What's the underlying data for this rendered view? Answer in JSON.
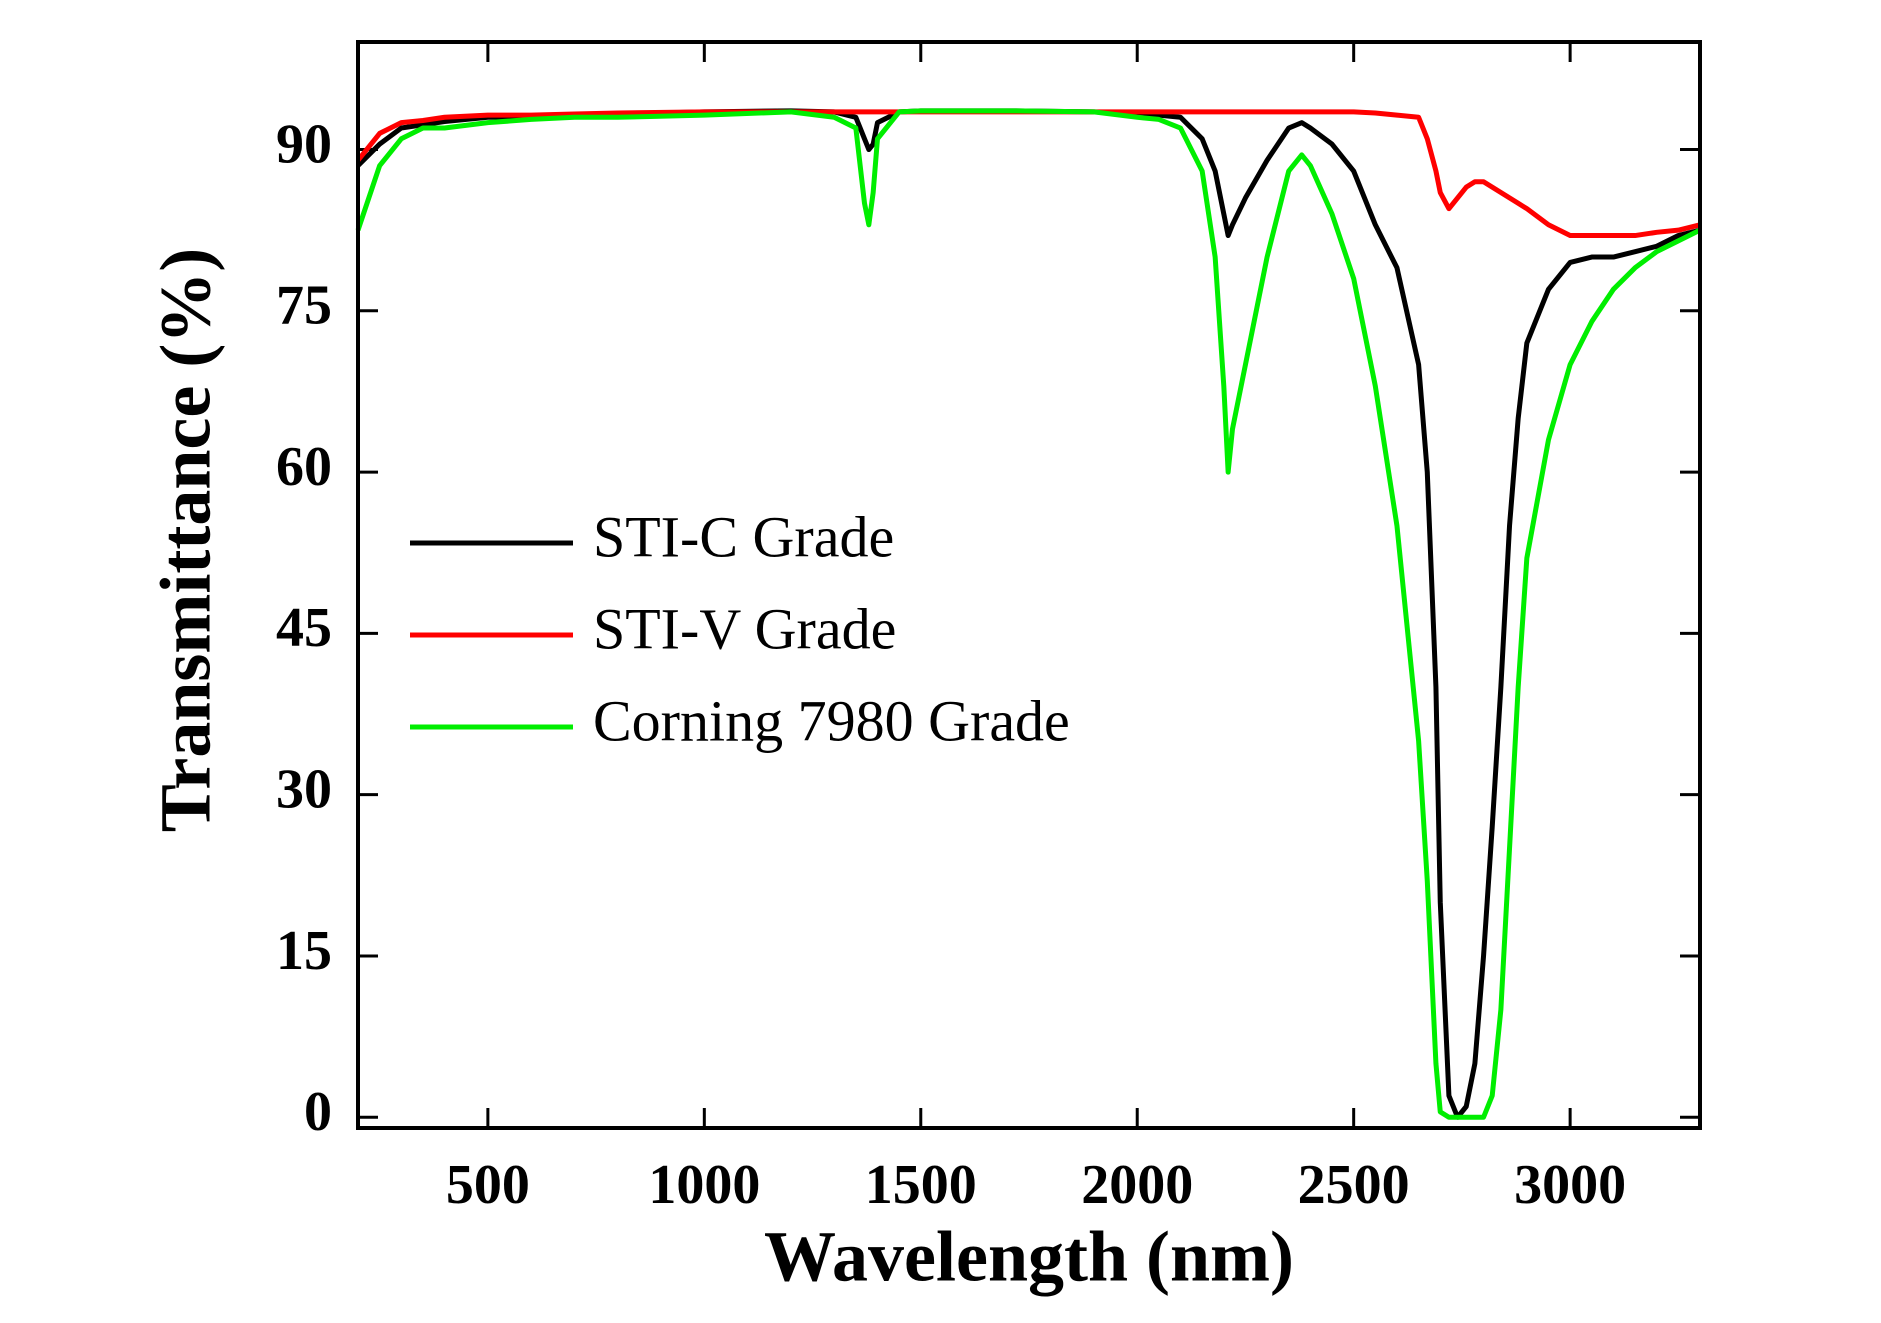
{
  "chart_data": {
    "type": "line",
    "x_label": "Wavelength (nm)",
    "y_label": "Transmittance (%)",
    "x": [
      200,
      250,
      300,
      350,
      400,
      500,
      600,
      700,
      800,
      1000,
      1200,
      1300,
      1350,
      1370,
      1380,
      1390,
      1400,
      1450,
      1500,
      1700,
      1900,
      2000,
      2050,
      2100,
      2150,
      2180,
      2200,
      2210,
      2220,
      2250,
      2300,
      2350,
      2380,
      2400,
      2450,
      2500,
      2550,
      2600,
      2650,
      2670,
      2690,
      2700,
      2720,
      2740,
      2760,
      2780,
      2800,
      2820,
      2840,
      2860,
      2880,
      2900,
      2950,
      3000,
      3050,
      3100,
      3150,
      3200,
      3250,
      3300
    ],
    "series": [
      {
        "name": "STI-C Grade",
        "color": "#000000",
        "values": [
          88.5,
          90.5,
          92,
          92.3,
          92.6,
          93,
          93,
          93.2,
          93.3,
          93.5,
          93.6,
          93.5,
          93,
          91,
          90,
          90.5,
          92.5,
          93.5,
          93.6,
          93.6,
          93.5,
          93.3,
          93.2,
          93,
          91,
          88,
          84,
          82,
          83,
          85.5,
          89,
          92,
          92.5,
          92,
          90.5,
          88,
          83,
          79,
          70,
          60,
          40,
          20,
          2,
          0,
          1,
          5,
          15,
          27,
          40,
          55,
          65,
          72,
          77,
          79.5,
          80,
          80,
          80.5,
          81,
          82,
          82.5
        ]
      },
      {
        "name": "STI-V Grade",
        "color": "#ff0000",
        "values": [
          89,
          91.5,
          92.5,
          92.7,
          93,
          93.2,
          93.2,
          93.3,
          93.4,
          93.5,
          93.5,
          93.5,
          93.5,
          93.5,
          93.5,
          93.5,
          93.5,
          93.5,
          93.5,
          93.5,
          93.5,
          93.5,
          93.5,
          93.5,
          93.5,
          93.5,
          93.5,
          93.5,
          93.5,
          93.5,
          93.5,
          93.5,
          93.5,
          93.5,
          93.5,
          93.5,
          93.4,
          93.2,
          93,
          91,
          88,
          86,
          84.5,
          85.5,
          86.5,
          87,
          87,
          86.5,
          86,
          85.5,
          85,
          84.5,
          83,
          82,
          82,
          82,
          82,
          82.3,
          82.5,
          83
        ]
      },
      {
        "name": "Corning 7980 Grade",
        "color": "#00ee00",
        "values": [
          82.5,
          88.5,
          91,
          92,
          92,
          92.5,
          92.8,
          93,
          93,
          93.2,
          93.5,
          93,
          92,
          85,
          83,
          86,
          91,
          93.5,
          93.6,
          93.6,
          93.5,
          93,
          92.8,
          92,
          88,
          80,
          68,
          60,
          64,
          70,
          80,
          88,
          89.5,
          88.5,
          84,
          78,
          68,
          55,
          35,
          22,
          5,
          0.5,
          0,
          0,
          0,
          0,
          0,
          2,
          10,
          25,
          40,
          52,
          63,
          70,
          74,
          77,
          79,
          80.5,
          81.5,
          82.5
        ]
      }
    ],
    "xlim": [
      200,
      3300
    ],
    "ylim": [
      -1,
      100
    ],
    "xticks": [
      500,
      1000,
      1500,
      2000,
      2500,
      3000
    ],
    "yticks": [
      0,
      15,
      30,
      45,
      60,
      75,
      90
    ],
    "legend": "left",
    "grid": false
  }
}
